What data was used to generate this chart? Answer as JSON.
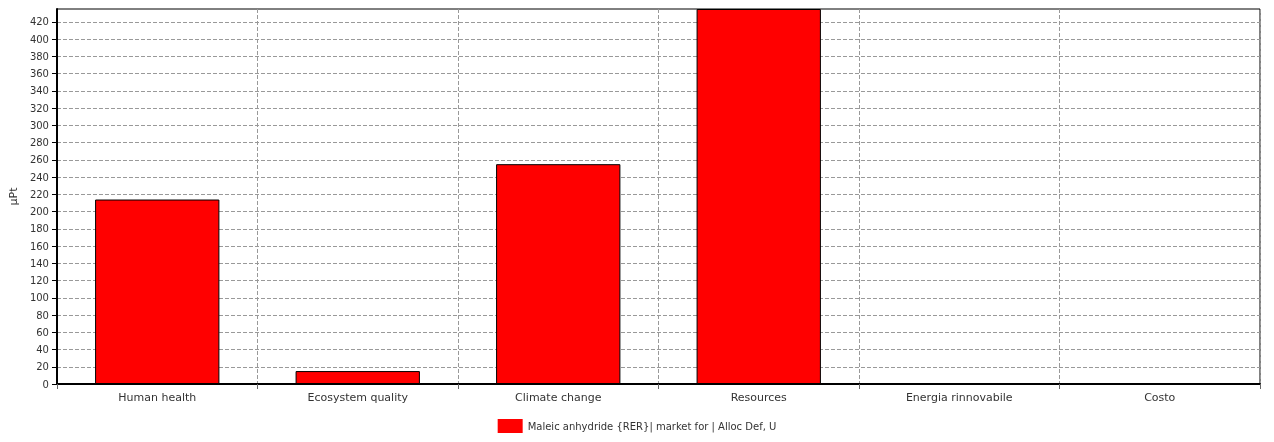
{
  "chart_data": {
    "type": "bar",
    "ylabel": "µPt",
    "categories": [
      "Human health",
      "Ecosystem quality",
      "Climate change",
      "Resources",
      "Energia rinnovabile",
      "Costo"
    ],
    "series": [
      {
        "name": "Maleic anhydride {RER}| market for | Alloc Def, U",
        "color": "#ff0000",
        "values": [
          214,
          15,
          255,
          435,
          0,
          0
        ]
      }
    ],
    "ylim": [
      0,
      435
    ],
    "yticks": [
      0,
      20,
      40,
      60,
      80,
      100,
      120,
      140,
      160,
      180,
      200,
      220,
      240,
      260,
      280,
      300,
      320,
      340,
      360,
      380,
      400,
      420
    ],
    "grid": true,
    "legend": "bottom"
  }
}
